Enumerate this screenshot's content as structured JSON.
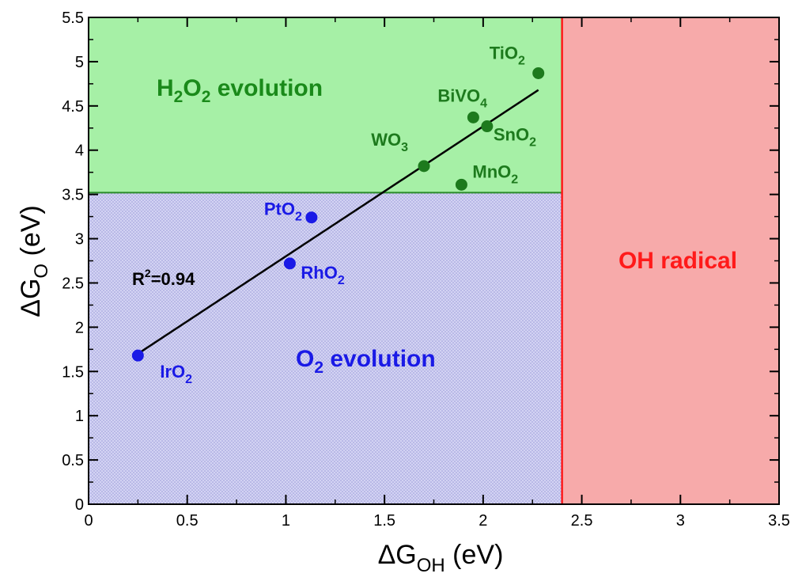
{
  "chart_data": {
    "type": "scatter",
    "xlim": [
      0,
      3.5
    ],
    "ylim": [
      0,
      5.5
    ],
    "x_ticks": [
      "0",
      "0.5",
      "1",
      "1.5",
      "2",
      "2.5",
      "3",
      "3.5"
    ],
    "y_ticks": [
      "0",
      "0.5",
      "1",
      "1.5",
      "2",
      "2.5",
      "3",
      "3.5",
      "4",
      "4.5",
      "5",
      "5.5"
    ],
    "xlabel": {
      "main": "ΔG",
      "sub": "OH",
      "unit": " (eV)"
    },
    "ylabel": {
      "main": "ΔG",
      "sub": "O",
      "unit": " (eV)"
    },
    "regions": [
      {
        "label_main": "H",
        "label_sub1": "2",
        "label_mid": "O",
        "label_sub2": "2",
        "label_tail": " evolution",
        "color": "#a6f0a6",
        "text_color": "#1a8a1a",
        "x_range": [
          0,
          2.4
        ],
        "y_range": [
          3.52,
          5.5
        ]
      },
      {
        "label_main": "O",
        "label_sub1": "2",
        "label_tail": " evolution",
        "color": "#c8c8ec",
        "text_color": "#1a1ae6",
        "x_range": [
          0,
          2.4
        ],
        "y_range": [
          0,
          3.52
        ]
      },
      {
        "label_main": "OH radical",
        "color": "#f7aaaa",
        "text_color": "#ff1a1a",
        "x_range": [
          2.4,
          3.5
        ],
        "y_range": [
          0,
          5.5
        ]
      }
    ],
    "boundaries": {
      "y_h2o2": 3.52,
      "x_oh": 2.4
    },
    "series": [
      {
        "color": "#1a1ae6",
        "points": [
          {
            "x": 0.25,
            "y": 1.68,
            "label": "IrO",
            "sub": "2"
          },
          {
            "x": 1.02,
            "y": 2.72,
            "label": "RhO",
            "sub": "2"
          },
          {
            "x": 1.13,
            "y": 3.24,
            "label": "PtO",
            "sub": "2"
          }
        ]
      },
      {
        "color": "#1d7a1d",
        "points": [
          {
            "x": 1.7,
            "y": 3.82,
            "label": "WO",
            "sub": "3"
          },
          {
            "x": 1.89,
            "y": 3.61,
            "label": "MnO",
            "sub": "2"
          },
          {
            "x": 1.95,
            "y": 4.37,
            "label": "BiVO",
            "sub": "4"
          },
          {
            "x": 2.02,
            "y": 4.27,
            "label": "SnO",
            "sub": "2"
          },
          {
            "x": 2.28,
            "y": 4.87,
            "label": "TiO",
            "sub": "2"
          }
        ]
      }
    ],
    "fit_line": {
      "x": [
        0.25,
        2.28
      ],
      "y": [
        1.7,
        4.68
      ]
    },
    "annotation": {
      "main": "R",
      "sup": "2",
      "tail": "=0.94"
    }
  }
}
